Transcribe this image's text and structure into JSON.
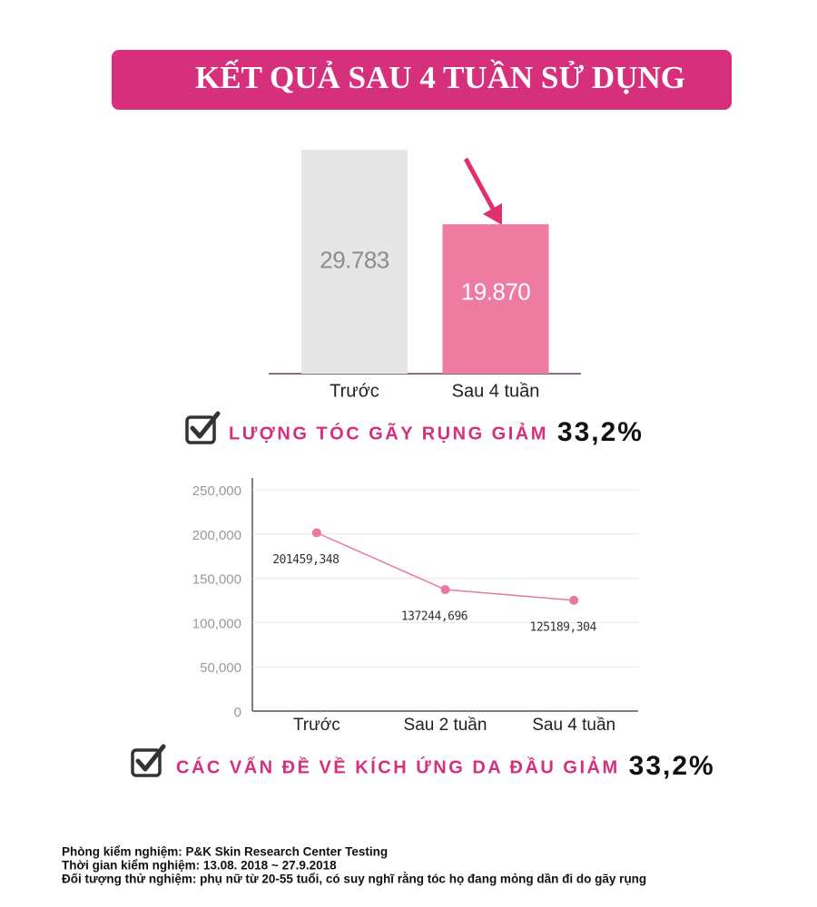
{
  "header": {
    "title": "KẾT QUẢ SAU 4 TUẦN SỬ DỤNG"
  },
  "chart_data": [
    {
      "type": "bar",
      "categories": [
        "Trước",
        "Sau 4 tuần"
      ],
      "values": [
        29783,
        19870
      ],
      "value_labels": [
        "29.783",
        "19.870"
      ],
      "colors": [
        "#e6e6e6",
        "#ee7ba0"
      ],
      "label_colors": [
        "#8c8c8c",
        "#ffffff"
      ]
    },
    {
      "type": "line",
      "categories": [
        "Trước",
        "Sau 2 tuần",
        "Sau 4 tuần"
      ],
      "values": [
        201459.348,
        137244.696,
        125189.304
      ],
      "value_labels": [
        "201459,348",
        "137244,696",
        "125189,304"
      ],
      "color": "#e67aa0",
      "ylim": [
        0,
        250000
      ],
      "yticks": [
        0,
        {
          "value": 50000,
          "label": "50,000"
        },
        {
          "value": 100000,
          "label": "100,000"
        },
        {
          "value": 150000,
          "label": "150,000"
        },
        {
          "value": 200000,
          "label": "200,000"
        },
        {
          "value": 250000,
          "label": "250,000"
        }
      ],
      "grid": true
    }
  ],
  "summaries": [
    {
      "text": "LƯỢNG TÓC GÃY RỤNG GIẢM",
      "value": "33,2%"
    },
    {
      "text": "CÁC VẤN ĐỀ VỀ KÍCH ỨNG DA ĐẦU GIẢM",
      "value": "33,2%"
    }
  ],
  "footer": {
    "lines": [
      "Phòng kiểm nghiệm: P&K Skin Research Center Testing",
      "Thời gian kiểm nghiệm: 13.08. 2018 ~ 27.9.2018",
      "Đối tượng thử nghiệm: phụ nữ từ 20-55 tuổi, có suy nghĩ rằng tóc họ đang mỏng dần đi do gãy rụng"
    ]
  }
}
